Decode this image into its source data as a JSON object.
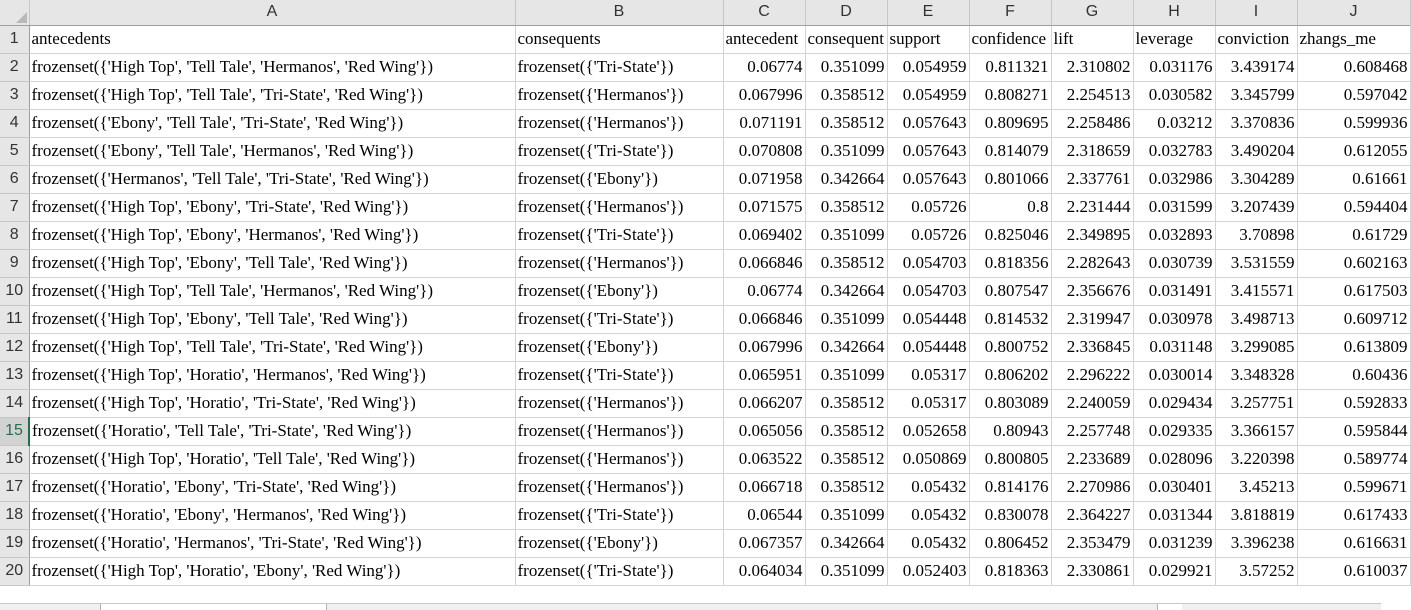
{
  "columns": [
    "A",
    "B",
    "C",
    "D",
    "E",
    "F",
    "G",
    "H",
    "I",
    "J"
  ],
  "active_row": "15",
  "rows": [
    {
      "n": "1",
      "cells": [
        "antecedents",
        "consequents",
        "antecedent",
        "consequent",
        "support",
        "confidence",
        "lift",
        "leverage",
        "conviction",
        "zhangs_me"
      ]
    },
    {
      "n": "2",
      "cells": [
        "frozenset({'High Top', 'Tell Tale', 'Hermanos', 'Red Wing'})",
        "frozenset({'Tri-State'})",
        "0.06774",
        "0.351099",
        "0.054959",
        "0.811321",
        "2.310802",
        "0.031176",
        "3.439174",
        "0.608468"
      ]
    },
    {
      "n": "3",
      "cells": [
        "frozenset({'High Top', 'Tell Tale', 'Tri-State', 'Red Wing'})",
        "frozenset({'Hermanos'})",
        "0.067996",
        "0.358512",
        "0.054959",
        "0.808271",
        "2.254513",
        "0.030582",
        "3.345799",
        "0.597042"
      ]
    },
    {
      "n": "4",
      "cells": [
        "frozenset({'Ebony', 'Tell Tale', 'Tri-State', 'Red Wing'})",
        "frozenset({'Hermanos'})",
        "0.071191",
        "0.358512",
        "0.057643",
        "0.809695",
        "2.258486",
        "0.03212",
        "3.370836",
        "0.599936"
      ]
    },
    {
      "n": "5",
      "cells": [
        "frozenset({'Ebony', 'Tell Tale', 'Hermanos', 'Red Wing'})",
        "frozenset({'Tri-State'})",
        "0.070808",
        "0.351099",
        "0.057643",
        "0.814079",
        "2.318659",
        "0.032783",
        "3.490204",
        "0.612055"
      ]
    },
    {
      "n": "6",
      "cells": [
        "frozenset({'Hermanos', 'Tell Tale', 'Tri-State', 'Red Wing'})",
        "frozenset({'Ebony'})",
        "0.071958",
        "0.342664",
        "0.057643",
        "0.801066",
        "2.337761",
        "0.032986",
        "3.304289",
        "0.61661"
      ]
    },
    {
      "n": "7",
      "cells": [
        "frozenset({'High Top', 'Ebony', 'Tri-State', 'Red Wing'})",
        "frozenset({'Hermanos'})",
        "0.071575",
        "0.358512",
        "0.05726",
        "0.8",
        "2.231444",
        "0.031599",
        "3.207439",
        "0.594404"
      ]
    },
    {
      "n": "8",
      "cells": [
        "frozenset({'High Top', 'Ebony', 'Hermanos', 'Red Wing'})",
        "frozenset({'Tri-State'})",
        "0.069402",
        "0.351099",
        "0.05726",
        "0.825046",
        "2.349895",
        "0.032893",
        "3.70898",
        "0.61729"
      ]
    },
    {
      "n": "9",
      "cells": [
        "frozenset({'High Top', 'Ebony', 'Tell Tale', 'Red Wing'})",
        "frozenset({'Hermanos'})",
        "0.066846",
        "0.358512",
        "0.054703",
        "0.818356",
        "2.282643",
        "0.030739",
        "3.531559",
        "0.602163"
      ]
    },
    {
      "n": "10",
      "cells": [
        "frozenset({'High Top', 'Tell Tale', 'Hermanos', 'Red Wing'})",
        "frozenset({'Ebony'})",
        "0.06774",
        "0.342664",
        "0.054703",
        "0.807547",
        "2.356676",
        "0.031491",
        "3.415571",
        "0.617503"
      ]
    },
    {
      "n": "11",
      "cells": [
        "frozenset({'High Top', 'Ebony', 'Tell Tale', 'Red Wing'})",
        "frozenset({'Tri-State'})",
        "0.066846",
        "0.351099",
        "0.054448",
        "0.814532",
        "2.319947",
        "0.030978",
        "3.498713",
        "0.609712"
      ]
    },
    {
      "n": "12",
      "cells": [
        "frozenset({'High Top', 'Tell Tale', 'Tri-State', 'Red Wing'})",
        "frozenset({'Ebony'})",
        "0.067996",
        "0.342664",
        "0.054448",
        "0.800752",
        "2.336845",
        "0.031148",
        "3.299085",
        "0.613809"
      ]
    },
    {
      "n": "13",
      "cells": [
        "frozenset({'High Top', 'Horatio', 'Hermanos', 'Red Wing'})",
        "frozenset({'Tri-State'})",
        "0.065951",
        "0.351099",
        "0.05317",
        "0.806202",
        "2.296222",
        "0.030014",
        "3.348328",
        "0.60436"
      ]
    },
    {
      "n": "14",
      "cells": [
        "frozenset({'High Top', 'Horatio', 'Tri-State', 'Red Wing'})",
        "frozenset({'Hermanos'})",
        "0.066207",
        "0.358512",
        "0.05317",
        "0.803089",
        "2.240059",
        "0.029434",
        "3.257751",
        "0.592833"
      ]
    },
    {
      "n": "15",
      "cells": [
        "frozenset({'Horatio', 'Tell Tale', 'Tri-State', 'Red Wing'})",
        "frozenset({'Hermanos'})",
        "0.065056",
        "0.358512",
        "0.052658",
        "0.80943",
        "2.257748",
        "0.029335",
        "3.366157",
        "0.595844"
      ]
    },
    {
      "n": "16",
      "cells": [
        "frozenset({'High Top', 'Horatio', 'Tell Tale', 'Red Wing'})",
        "frozenset({'Hermanos'})",
        "0.063522",
        "0.358512",
        "0.050869",
        "0.800805",
        "2.233689",
        "0.028096",
        "3.220398",
        "0.589774"
      ]
    },
    {
      "n": "17",
      "cells": [
        "frozenset({'Horatio', 'Ebony', 'Tri-State', 'Red Wing'})",
        "frozenset({'Hermanos'})",
        "0.066718",
        "0.358512",
        "0.05432",
        "0.814176",
        "2.270986",
        "0.030401",
        "3.45213",
        "0.599671"
      ]
    },
    {
      "n": "18",
      "cells": [
        "frozenset({'Horatio', 'Ebony', 'Hermanos', 'Red Wing'})",
        "frozenset({'Tri-State'})",
        "0.06544",
        "0.351099",
        "0.05432",
        "0.830078",
        "2.364227",
        "0.031344",
        "3.818819",
        "0.617433"
      ]
    },
    {
      "n": "19",
      "cells": [
        "frozenset({'Horatio', 'Hermanos', 'Tri-State', 'Red Wing'})",
        "frozenset({'Ebony'})",
        "0.067357",
        "0.342664",
        "0.05432",
        "0.806452",
        "2.353479",
        "0.031239",
        "3.396238",
        "0.616631"
      ]
    },
    {
      "n": "20",
      "cells": [
        "frozenset({'High Top', 'Horatio', 'Ebony', 'Red Wing'})",
        "frozenset({'Tri-State'})",
        "0.064034",
        "0.351099",
        "0.052403",
        "0.818363",
        "2.330861",
        "0.029921",
        "3.57252",
        "0.610037"
      ]
    }
  ]
}
